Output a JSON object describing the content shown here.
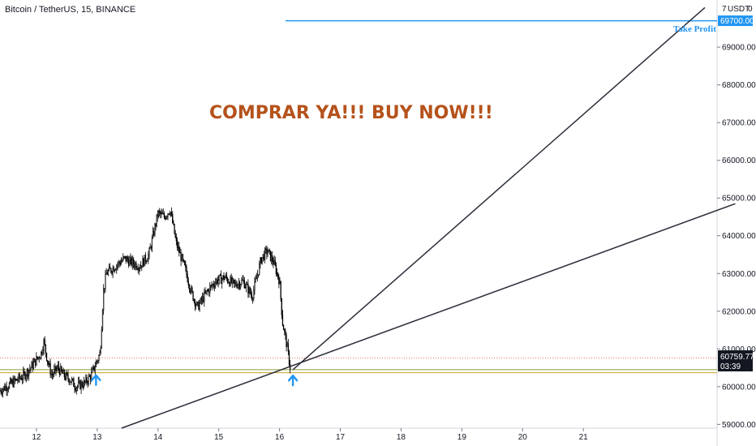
{
  "header": {
    "title": "Bitcoin / TetherUS, 15, BINANCE"
  },
  "chart_data": {
    "type": "candlestick",
    "title": "Bitcoin / TetherUS, 15, BINANCE",
    "x_tick_labels": [
      "12",
      "13",
      "14",
      "15",
      "16",
      "17",
      "18",
      "19",
      "20",
      "21"
    ],
    "x_ticks": [
      12,
      13,
      14,
      15,
      16,
      17,
      18,
      19,
      20,
      21
    ],
    "xlim": [
      11.4,
      23.2
    ],
    "ylim": [
      58900,
      70250
    ],
    "y_unit": "USDT",
    "y_ticks": [
      59000,
      60000,
      61000,
      62000,
      63000,
      64000,
      65000,
      66000,
      67000,
      68000,
      69000
    ],
    "y_tick_labels": [
      "59000.00",
      "60000.00",
      "61000.00",
      "62000.00",
      "63000.00",
      "64000.00",
      "65000.00",
      "66000.00",
      "67000.00",
      "68000.00",
      "69000.00"
    ],
    "price_path": [
      [
        11.4,
        59900
      ],
      [
        11.6,
        60100
      ],
      [
        11.8,
        60300
      ],
      [
        11.95,
        60600
      ],
      [
        12.08,
        60900
      ],
      [
        12.12,
        61200
      ],
      [
        12.18,
        60700
      ],
      [
        12.25,
        60300
      ],
      [
        12.35,
        60500
      ],
      [
        12.45,
        60300
      ],
      [
        12.55,
        60200
      ],
      [
        12.65,
        60000
      ],
      [
        12.8,
        60100
      ],
      [
        12.9,
        60300
      ],
      [
        13.0,
        60700
      ],
      [
        13.05,
        60900
      ],
      [
        13.1,
        62500
      ],
      [
        13.15,
        63000
      ],
      [
        13.3,
        63200
      ],
      [
        13.45,
        63400
      ],
      [
        13.55,
        63300
      ],
      [
        13.7,
        63200
      ],
      [
        13.85,
        63500
      ],
      [
        14.0,
        64600
      ],
      [
        14.1,
        64500
      ],
      [
        14.2,
        64700
      ],
      [
        14.3,
        63800
      ],
      [
        14.45,
        63100
      ],
      [
        14.55,
        62500
      ],
      [
        14.65,
        62100
      ],
      [
        14.8,
        62500
      ],
      [
        14.95,
        62800
      ],
      [
        15.1,
        62900
      ],
      [
        15.25,
        62700
      ],
      [
        15.4,
        62800
      ],
      [
        15.55,
        62400
      ],
      [
        15.7,
        63400
      ],
      [
        15.8,
        63600
      ],
      [
        15.9,
        63300
      ],
      [
        16.0,
        62800
      ],
      [
        16.05,
        61700
      ],
      [
        16.12,
        61100
      ],
      [
        16.18,
        60450
      ]
    ],
    "price_sampling_note": "",
    "current_price": "60759.77",
    "countdown": "03:39",
    "take_profit": {
      "label": "Take Profit",
      "value": "69700.00",
      "start_x": 16.1
    },
    "horizontal_lines": [
      {
        "value": 60450,
        "color": "#8a9a3a"
      },
      {
        "value": 60370,
        "color": "#c9a227"
      },
      {
        "value": 60759.77,
        "color": "#e57373",
        "dashed": true
      }
    ],
    "trend_lines": [
      {
        "from": [
          16.22,
          60450
        ],
        "to": [
          23.0,
          70050
        ]
      },
      {
        "from": [
          13.4,
          58900
        ],
        "to": [
          23.5,
          64850
        ]
      }
    ],
    "arrows": [
      {
        "x": 12.98,
        "y": 60260
      },
      {
        "x": 16.22,
        "y": 60250
      }
    ],
    "annotation": "COMPRAR YA!!! BUY NOW!!!",
    "axis_unit_label": "USDT",
    "axis_corner_labels": [
      "7",
      "0"
    ],
    "colors": {
      "candles": "#000000",
      "take_profit": "#2196f3",
      "headline": "#b5521b",
      "arrows": "#2196f3"
    }
  }
}
